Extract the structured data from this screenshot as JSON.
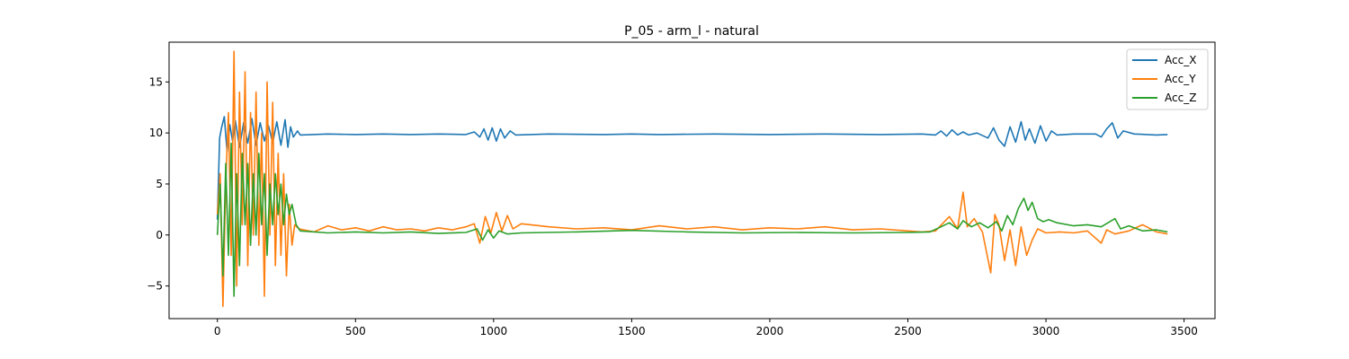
{
  "chart_data": {
    "type": "line",
    "title": "P_05 - arm_l - natural",
    "xlabel": "",
    "ylabel": "",
    "xlim": [
      -175,
      3612
    ],
    "ylim": [
      -8.2,
      18.9
    ],
    "xticks": [
      0,
      500,
      1000,
      1500,
      2000,
      2500,
      3000,
      3500
    ],
    "yticks": [
      -5,
      0,
      5,
      10,
      15
    ],
    "grid": false,
    "legend_position": "top-right",
    "series": [
      {
        "name": "Acc_X",
        "color": "#1f77b4",
        "points": [
          [
            0,
            1.5
          ],
          [
            8,
            9.5
          ],
          [
            15,
            10.5
          ],
          [
            25,
            11.6
          ],
          [
            35,
            8.2
          ],
          [
            45,
            10.8
          ],
          [
            55,
            9.2
          ],
          [
            65,
            11.2
          ],
          [
            80,
            8.6
          ],
          [
            95,
            11.0
          ],
          [
            110,
            9.0
          ],
          [
            125,
            11.4
          ],
          [
            140,
            8.8
          ],
          [
            155,
            11.0
          ],
          [
            170,
            9.2
          ],
          [
            185,
            10.7
          ],
          [
            200,
            9.0
          ],
          [
            215,
            11.1
          ],
          [
            230,
            8.8
          ],
          [
            245,
            11.3
          ],
          [
            255,
            8.6
          ],
          [
            265,
            10.6
          ],
          [
            275,
            9.6
          ],
          [
            290,
            10.2
          ],
          [
            300,
            9.8
          ],
          [
            400,
            9.9
          ],
          [
            500,
            9.85
          ],
          [
            600,
            9.9
          ],
          [
            700,
            9.85
          ],
          [
            800,
            9.9
          ],
          [
            900,
            9.85
          ],
          [
            930,
            10.1
          ],
          [
            950,
            9.6
          ],
          [
            965,
            10.4
          ],
          [
            980,
            9.3
          ],
          [
            995,
            10.5
          ],
          [
            1010,
            9.2
          ],
          [
            1025,
            10.4
          ],
          [
            1040,
            9.5
          ],
          [
            1060,
            10.2
          ],
          [
            1080,
            9.8
          ],
          [
            1200,
            9.9
          ],
          [
            1400,
            9.85
          ],
          [
            1500,
            9.9
          ],
          [
            1600,
            9.85
          ],
          [
            1800,
            9.9
          ],
          [
            2000,
            9.85
          ],
          [
            2200,
            9.9
          ],
          [
            2400,
            9.85
          ],
          [
            2550,
            9.9
          ],
          [
            2600,
            9.8
          ],
          [
            2620,
            10.2
          ],
          [
            2640,
            9.7
          ],
          [
            2660,
            10.3
          ],
          [
            2680,
            9.8
          ],
          [
            2700,
            10.1
          ],
          [
            2720,
            9.8
          ],
          [
            2750,
            10.0
          ],
          [
            2790,
            9.5
          ],
          [
            2810,
            10.5
          ],
          [
            2830,
            9.3
          ],
          [
            2850,
            8.7
          ],
          [
            2870,
            10.6
          ],
          [
            2890,
            9.1
          ],
          [
            2910,
            11.1
          ],
          [
            2925,
            9.3
          ],
          [
            2940,
            10.4
          ],
          [
            2960,
            9.0
          ],
          [
            2980,
            10.7
          ],
          [
            3000,
            9.2
          ],
          [
            3020,
            10.2
          ],
          [
            3040,
            9.8
          ],
          [
            3100,
            9.9
          ],
          [
            3180,
            9.9
          ],
          [
            3200,
            9.6
          ],
          [
            3220,
            10.4
          ],
          [
            3240,
            11.0
          ],
          [
            3260,
            9.5
          ],
          [
            3280,
            10.2
          ],
          [
            3320,
            9.9
          ],
          [
            3400,
            9.8
          ],
          [
            3440,
            9.85
          ]
        ]
      },
      {
        "name": "Acc_Y",
        "color": "#ff7f0e",
        "points": [
          [
            0,
            2.0
          ],
          [
            10,
            6.0
          ],
          [
            20,
            -7.0
          ],
          [
            30,
            5.0
          ],
          [
            40,
            12.0
          ],
          [
            50,
            -2.0
          ],
          [
            60,
            18.0
          ],
          [
            70,
            -5.0
          ],
          [
            80,
            14.0
          ],
          [
            90,
            1.0
          ],
          [
            100,
            16.0
          ],
          [
            110,
            -3.0
          ],
          [
            120,
            12.0
          ],
          [
            130,
            0.0
          ],
          [
            140,
            14.0
          ],
          [
            150,
            -1.0
          ],
          [
            160,
            10.0
          ],
          [
            170,
            -6.0
          ],
          [
            180,
            15.0
          ],
          [
            190,
            0.0
          ],
          [
            200,
            13.0
          ],
          [
            210,
            -3.0
          ],
          [
            220,
            8.0
          ],
          [
            230,
            -2.0
          ],
          [
            240,
            6.0
          ],
          [
            250,
            -4.0
          ],
          [
            260,
            3.0
          ],
          [
            270,
            -1.0
          ],
          [
            280,
            1.0
          ],
          [
            295,
            0.6
          ],
          [
            350,
            0.3
          ],
          [
            400,
            0.9
          ],
          [
            450,
            0.5
          ],
          [
            500,
            0.7
          ],
          [
            550,
            0.4
          ],
          [
            600,
            0.8
          ],
          [
            650,
            0.5
          ],
          [
            700,
            0.6
          ],
          [
            750,
            0.4
          ],
          [
            800,
            0.7
          ],
          [
            850,
            0.5
          ],
          [
            900,
            0.8
          ],
          [
            930,
            1.1
          ],
          [
            950,
            -0.8
          ],
          [
            970,
            1.8
          ],
          [
            990,
            0.2
          ],
          [
            1010,
            2.2
          ],
          [
            1030,
            0.4
          ],
          [
            1050,
            1.9
          ],
          [
            1070,
            0.6
          ],
          [
            1100,
            1.1
          ],
          [
            1200,
            0.8
          ],
          [
            1300,
            0.6
          ],
          [
            1400,
            0.7
          ],
          [
            1500,
            0.5
          ],
          [
            1600,
            0.9
          ],
          [
            1700,
            0.6
          ],
          [
            1800,
            0.8
          ],
          [
            1900,
            0.5
          ],
          [
            2000,
            0.7
          ],
          [
            2100,
            0.6
          ],
          [
            2200,
            0.8
          ],
          [
            2300,
            0.5
          ],
          [
            2400,
            0.6
          ],
          [
            2500,
            0.4
          ],
          [
            2550,
            0.3
          ],
          [
            2600,
            0.4
          ],
          [
            2650,
            1.8
          ],
          [
            2680,
            0.6
          ],
          [
            2700,
            4.2
          ],
          [
            2715,
            0.8
          ],
          [
            2740,
            1.6
          ],
          [
            2770,
            0.3
          ],
          [
            2800,
            -3.7
          ],
          [
            2815,
            2.0
          ],
          [
            2830,
            1.0
          ],
          [
            2850,
            -2.5
          ],
          [
            2870,
            0.5
          ],
          [
            2890,
            -3.0
          ],
          [
            2910,
            0.8
          ],
          [
            2930,
            -2.0
          ],
          [
            2950,
            -0.5
          ],
          [
            2970,
            0.6
          ],
          [
            3000,
            0.2
          ],
          [
            3050,
            0.3
          ],
          [
            3100,
            0.2
          ],
          [
            3150,
            0.4
          ],
          [
            3200,
            -0.8
          ],
          [
            3220,
            0.5
          ],
          [
            3250,
            0.1
          ],
          [
            3300,
            0.4
          ],
          [
            3350,
            1.0
          ],
          [
            3400,
            0.3
          ],
          [
            3440,
            0.1
          ]
        ]
      },
      {
        "name": "Acc_Z",
        "color": "#2ca02c",
        "points": [
          [
            0,
            0.0
          ],
          [
            10,
            5.0
          ],
          [
            20,
            -4.0
          ],
          [
            30,
            7.0
          ],
          [
            40,
            -2.0
          ],
          [
            50,
            9.0
          ],
          [
            60,
            -6.0
          ],
          [
            70,
            6.0
          ],
          [
            80,
            -3.0
          ],
          [
            90,
            8.0
          ],
          [
            100,
            1.0
          ],
          [
            110,
            7.0
          ],
          [
            120,
            -1.0
          ],
          [
            130,
            6.0
          ],
          [
            140,
            0.0
          ],
          [
            150,
            8.0
          ],
          [
            160,
            1.0
          ],
          [
            170,
            6.0
          ],
          [
            180,
            -2.0
          ],
          [
            190,
            5.0
          ],
          [
            200,
            1.0
          ],
          [
            210,
            6.0
          ],
          [
            220,
            2.0
          ],
          [
            230,
            5.0
          ],
          [
            240,
            1.0
          ],
          [
            250,
            4.0
          ],
          [
            260,
            2.0
          ],
          [
            270,
            3.0
          ],
          [
            285,
            1.0
          ],
          [
            300,
            0.4
          ],
          [
            400,
            0.2
          ],
          [
            500,
            0.3
          ],
          [
            600,
            0.2
          ],
          [
            700,
            0.3
          ],
          [
            800,
            0.15
          ],
          [
            900,
            0.25
          ],
          [
            940,
            0.6
          ],
          [
            960,
            -0.5
          ],
          [
            980,
            0.5
          ],
          [
            1000,
            -0.3
          ],
          [
            1020,
            0.4
          ],
          [
            1050,
            0.1
          ],
          [
            1100,
            0.2
          ],
          [
            1300,
            0.3
          ],
          [
            1500,
            0.45
          ],
          [
            1700,
            0.3
          ],
          [
            1900,
            0.2
          ],
          [
            2100,
            0.25
          ],
          [
            2300,
            0.2
          ],
          [
            2500,
            0.25
          ],
          [
            2580,
            0.3
          ],
          [
            2620,
            0.8
          ],
          [
            2650,
            1.2
          ],
          [
            2680,
            0.6
          ],
          [
            2700,
            1.4
          ],
          [
            2730,
            0.8
          ],
          [
            2760,
            1.2
          ],
          [
            2790,
            0.7
          ],
          [
            2820,
            1.3
          ],
          [
            2840,
            0.4
          ],
          [
            2860,
            1.9
          ],
          [
            2880,
            1.0
          ],
          [
            2900,
            2.6
          ],
          [
            2920,
            3.6
          ],
          [
            2935,
            2.4
          ],
          [
            2950,
            3.2
          ],
          [
            2970,
            1.6
          ],
          [
            2990,
            1.3
          ],
          [
            3010,
            1.5
          ],
          [
            3040,
            1.2
          ],
          [
            3100,
            0.9
          ],
          [
            3150,
            1.0
          ],
          [
            3200,
            0.8
          ],
          [
            3250,
            1.6
          ],
          [
            3270,
            0.6
          ],
          [
            3300,
            0.9
          ],
          [
            3350,
            0.4
          ],
          [
            3400,
            0.5
          ],
          [
            3440,
            0.3
          ]
        ]
      }
    ]
  }
}
